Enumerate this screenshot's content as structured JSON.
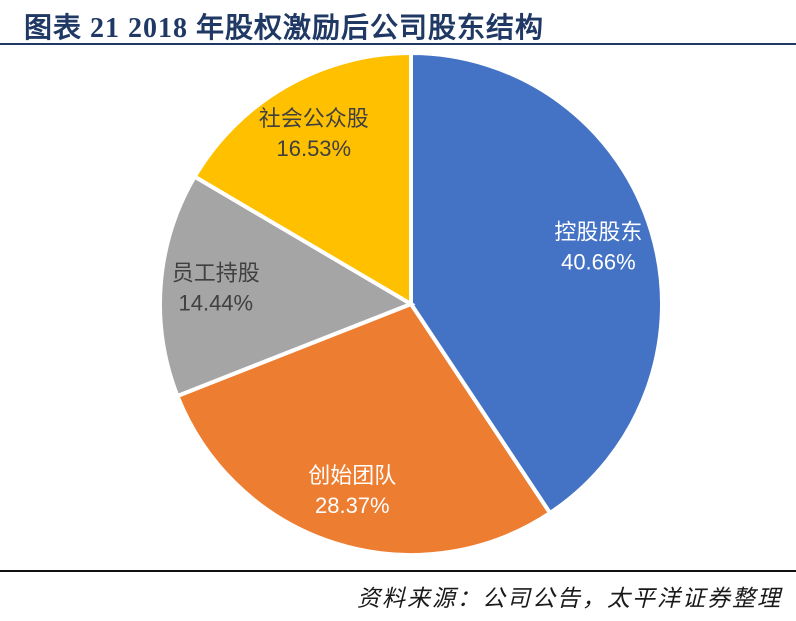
{
  "header": {
    "title": "图表 21 2018 年股权激励后公司股东结构",
    "accent_color": "#1F3864"
  },
  "footer": {
    "source": "资料来源：公司公告，太平洋证券整理"
  },
  "chart_data": {
    "type": "pie",
    "title": "2018 年股权激励后公司股东结构",
    "labels": [
      "控股股东",
      "创始团队",
      "员工持股",
      "社会公众股"
    ],
    "values": [
      40.66,
      28.37,
      14.44,
      16.53
    ],
    "display_values": [
      "40.66%",
      "28.37%",
      "14.44%",
      "16.53%"
    ],
    "unit": "%",
    "colors": [
      "#4472C4",
      "#ED7D31",
      "#A5A5A5",
      "#FFC000"
    ],
    "label_text_colors": [
      "#FFFFFF",
      "#FFFFFF",
      "#404040",
      "#404040"
    ],
    "start_angle_deg": -90,
    "direction": "clockwise",
    "slice_border_color": "#FFFFFF",
    "legend": "none",
    "label_placement": "inside"
  }
}
